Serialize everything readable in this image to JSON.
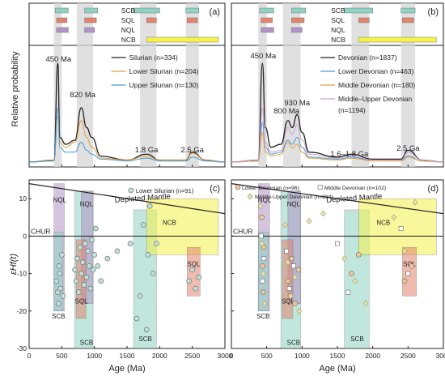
{
  "figure": {
    "panel_labels": [
      "(a)",
      "(b)",
      "(c)",
      "(d)"
    ],
    "source_labels": [
      "SCB",
      "SQL",
      "NQL",
      "NCB"
    ],
    "source_colors": {
      "SCB": "#8fd3c3",
      "SQL": "#e2856e",
      "NQL": "#b294c6",
      "NCB": "#f5f24a"
    },
    "shade_color": "#d6d6d6"
  },
  "top_left": {
    "ylabel": "Relative probability",
    "legend": [
      {
        "label": "Silurian (n=334)",
        "color": "#222222"
      },
      {
        "label": "Lower Silurian (n=204)",
        "color": "#e0a040"
      },
      {
        "label": "Upper Silurian (n=130)",
        "color": "#4a9ad6"
      }
    ],
    "peak_labels": [
      "450 Ma",
      "820 Ma",
      "1.8 Ga",
      "2.5 Ga"
    ]
  },
  "top_right": {
    "legend": [
      {
        "label": "Devonian (n=1837)",
        "color": "#222222"
      },
      {
        "label": "Lower Devonian (n=463)",
        "color": "#4a9ad6"
      },
      {
        "label": "Middle Devonian (n=180)",
        "color": "#e0a040"
      },
      {
        "label": "Middle–Upper Devonian",
        "label2": "(n=1194)",
        "color": "#c8a0d0"
      }
    ],
    "peak_labels": [
      "450 Ma",
      "800 Ma",
      "930 Ma",
      "1.6–1.8 Ga",
      "2.5 Ga"
    ]
  },
  "bottom_left": {
    "ylabel": "εHf(t)",
    "xlabel": "Age (Ma)",
    "legend": "Lower Silurian (n=91)",
    "mantle_label": "Depleted Mantle",
    "chur_label": "CHUR"
  },
  "bottom_right": {
    "xlabel": "Age (Ma)",
    "legend": [
      "Lower Devonian (n=96)",
      "Middle Devonian (n=102)",
      "Middle-Upper Devonian (n=284)"
    ],
    "mantle_label": "Depleted Mantle",
    "chur_label": "CHUR"
  },
  "axes": {
    "x_ticks": [
      "0",
      "500",
      "1000",
      "1500",
      "2000",
      "2500",
      "3000"
    ],
    "y_ticks": [
      "10",
      "0",
      "-10",
      "-20",
      "-30"
    ]
  },
  "chart_data": [
    {
      "type": "line",
      "title": "(a)",
      "xlabel": "",
      "ylabel": "Relative probability",
      "xlim": [
        0,
        3000
      ],
      "series": [
        {
          "name": "Silurian (n=334)",
          "x": [
            0,
            380,
            440,
            470,
            560,
            700,
            800,
            880,
            960,
            1100,
            1500,
            1800,
            2000,
            2400,
            2500,
            2700,
            3000
          ],
          "y": [
            0,
            0.02,
            1.0,
            0.25,
            0.18,
            0.22,
            0.55,
            0.35,
            0.25,
            0.06,
            0.02,
            0.08,
            0.02,
            0.02,
            0.1,
            0.02,
            0
          ]
        },
        {
          "name": "Lower Silurian (n=204)",
          "x": [
            0,
            380,
            440,
            470,
            560,
            700,
            800,
            880,
            960,
            1100,
            1500,
            1800,
            2000,
            2400,
            2500,
            2700,
            3000
          ],
          "y": [
            0,
            0.02,
            0.46,
            0.2,
            0.15,
            0.2,
            0.42,
            0.25,
            0.15,
            0.04,
            0.02,
            0.06,
            0.02,
            0.02,
            0.09,
            0.02,
            0
          ]
        },
        {
          "name": "Upper Silurian (n=130)",
          "x": [
            0,
            380,
            440,
            470,
            560,
            700,
            800,
            880,
            960,
            1100,
            1500,
            1800,
            2000,
            2400,
            2500,
            2700,
            3000
          ],
          "y": [
            0,
            0.01,
            0.55,
            0.15,
            0.1,
            0.1,
            0.2,
            0.12,
            0.08,
            0.03,
            0.01,
            0.04,
            0.01,
            0.01,
            0.05,
            0.01,
            0
          ]
        }
      ]
    },
    {
      "type": "line",
      "title": "(b)",
      "xlim": [
        0,
        3000
      ],
      "series": [
        {
          "name": "Devonian (n=1837)",
          "x": [
            0,
            380,
            440,
            480,
            560,
            700,
            800,
            860,
            930,
            1000,
            1100,
            1500,
            1700,
            2000,
            2400,
            2500,
            2700,
            3000
          ],
          "y": [
            0,
            0.02,
            1.0,
            0.35,
            0.15,
            0.18,
            0.42,
            0.35,
            0.48,
            0.3,
            0.1,
            0.05,
            0.08,
            0.03,
            0.03,
            0.12,
            0.02,
            0
          ]
        },
        {
          "name": "Lower Devonian (n=463)",
          "x": [
            0,
            380,
            440,
            480,
            560,
            700,
            800,
            860,
            930,
            1000,
            1100,
            1500,
            1700,
            2000,
            2400,
            2500,
            2700,
            3000
          ],
          "y": [
            0,
            0.01,
            0.4,
            0.15,
            0.08,
            0.1,
            0.22,
            0.18,
            0.25,
            0.15,
            0.05,
            0.03,
            0.05,
            0.02,
            0.02,
            0.06,
            0.01,
            0
          ]
        },
        {
          "name": "Middle Devonian (n=180)",
          "x": [
            0,
            380,
            440,
            480,
            560,
            700,
            800,
            860,
            930,
            1000,
            1100,
            1500,
            1700,
            2000,
            2400,
            2500,
            2700,
            3000
          ],
          "y": [
            0,
            0.01,
            0.3,
            0.1,
            0.06,
            0.08,
            0.2,
            0.14,
            0.18,
            0.1,
            0.04,
            0.02,
            0.04,
            0.01,
            0.01,
            0.05,
            0.01,
            0
          ]
        },
        {
          "name": "Middle–Upper Devonian (n=1194)",
          "x": [
            0,
            380,
            440,
            480,
            560,
            700,
            800,
            860,
            930,
            1000,
            1100,
            1500,
            1700,
            2000,
            2400,
            2500,
            2700,
            3000
          ],
          "y": [
            0,
            0.02,
            0.55,
            0.2,
            0.1,
            0.12,
            0.35,
            0.28,
            0.38,
            0.22,
            0.08,
            0.04,
            0.07,
            0.02,
            0.02,
            0.1,
            0.02,
            0
          ]
        }
      ]
    },
    {
      "type": "scatter",
      "title": "(c)",
      "xlabel": "Age (Ma)",
      "ylabel": "εHf(t)",
      "xlim": [
        0,
        3000
      ],
      "ylim": [
        -30,
        15
      ],
      "series": [
        {
          "name": "Lower Silurian (n=91)",
          "points": [
            [
              420,
              -12
            ],
            [
              440,
              -15
            ],
            [
              450,
              -18
            ],
            [
              460,
              -8
            ],
            [
              470,
              -10
            ],
            [
              480,
              -14
            ],
            [
              500,
              -5
            ],
            [
              520,
              -16
            ],
            [
              700,
              -9
            ],
            [
              720,
              -12
            ],
            [
              740,
              -6
            ],
            [
              760,
              -15
            ],
            [
              780,
              -3
            ],
            [
              800,
              -10
            ],
            [
              820,
              -7
            ],
            [
              840,
              -13
            ],
            [
              860,
              -2
            ],
            [
              880,
              -11
            ],
            [
              900,
              -4
            ],
            [
              920,
              -8
            ],
            [
              940,
              -14
            ],
            [
              960,
              -1
            ],
            [
              980,
              -9
            ],
            [
              1000,
              -5
            ],
            [
              1020,
              2
            ],
            [
              1050,
              -8
            ],
            [
              1100,
              -12
            ],
            [
              1200,
              -6
            ],
            [
              1350,
              -4
            ],
            [
              1550,
              -2
            ],
            [
              1650,
              -22
            ],
            [
              1700,
              -16
            ],
            [
              1750,
              3
            ],
            [
              1800,
              -25
            ],
            [
              1820,
              -5
            ],
            [
              1850,
              8
            ],
            [
              1900,
              -10
            ],
            [
              1950,
              -2
            ],
            [
              2450,
              -12
            ],
            [
              2500,
              -9
            ],
            [
              2550,
              -14
            ],
            [
              2600,
              -11
            ]
          ]
        }
      ]
    },
    {
      "type": "scatter",
      "title": "(d)",
      "xlabel": "Age (Ma)",
      "xlim": [
        0,
        3000
      ],
      "ylim": [
        -30,
        15
      ],
      "series": [
        {
          "name": "Lower Devonian (n=96)",
          "points": [
            [
              430,
              5
            ],
            [
              440,
              -8
            ],
            [
              450,
              -15
            ],
            [
              460,
              -3
            ],
            [
              800,
              -12
            ],
            [
              850,
              -6
            ],
            [
              900,
              -18
            ],
            [
              950,
              -9
            ],
            [
              1700,
              -10
            ],
            [
              1800,
              -5
            ],
            [
              2450,
              -12
            ],
            [
              2550,
              -8
            ]
          ]
        },
        {
          "name": "Middle Devonian (n=102)",
          "points": [
            [
              420,
              0
            ],
            [
              440,
              -12
            ],
            [
              460,
              -6
            ],
            [
              780,
              -4
            ],
            [
              820,
              -14
            ],
            [
              880,
              -8
            ],
            [
              1500,
              -2
            ],
            [
              1650,
              -15
            ],
            [
              2400,
              2
            ],
            [
              2500,
              -10
            ]
          ]
        },
        {
          "name": "Middle-Upper Devonian (n=284)",
          "points": [
            [
              410,
              8
            ],
            [
              430,
              -2
            ],
            [
              450,
              -10
            ],
            [
              470,
              -18
            ],
            [
              760,
              3
            ],
            [
              800,
              -7
            ],
            [
              840,
              -16
            ],
            [
              900,
              -11
            ],
            [
              960,
              -20
            ],
            [
              1100,
              4
            ],
            [
              1300,
              6
            ],
            [
              1600,
              -6
            ],
            [
              1750,
              -12
            ],
            [
              1900,
              -18
            ],
            [
              2300,
              5
            ],
            [
              2450,
              -4
            ],
            [
              2600,
              9
            ]
          ]
        }
      ]
    }
  ]
}
